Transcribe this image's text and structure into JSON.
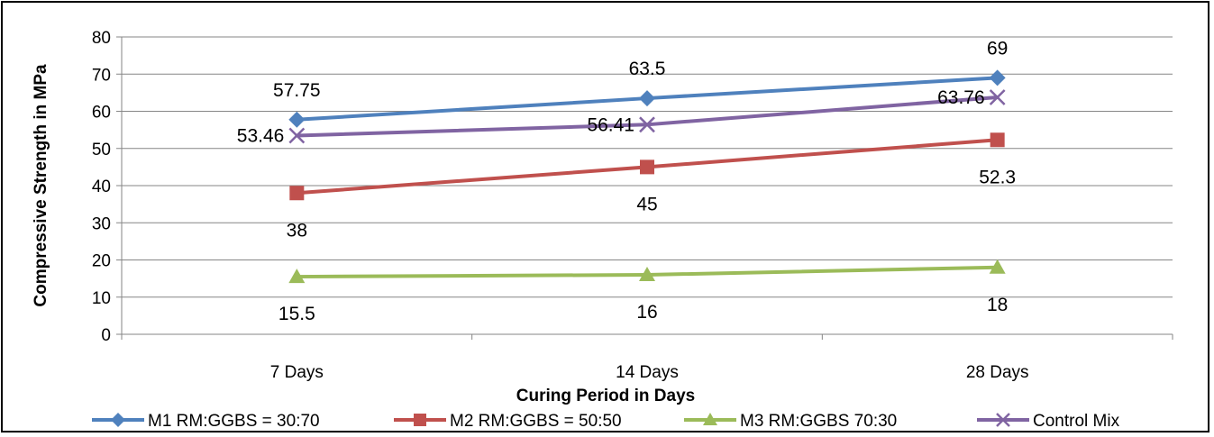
{
  "chart_data": {
    "type": "line",
    "categories": [
      "7 Days",
      "14 Days",
      "28 Days"
    ],
    "xlabel": "Curing Period in Days",
    "ylabel": "Compressive Strength in MPa",
    "ylim": [
      0,
      80
    ],
    "yticks": [
      0,
      10,
      20,
      30,
      40,
      50,
      60,
      70,
      80
    ],
    "grid": true,
    "legend_position": "bottom",
    "series": [
      {
        "name": "M1 RM:GGBS = 30:70",
        "color": "#4F81BD",
        "marker": "diamond",
        "values": [
          57.75,
          63.5,
          69
        ],
        "labels": [
          "57.75",
          "63.5",
          "69"
        ],
        "label_position": "above"
      },
      {
        "name": "M2 RM:GGBS = 50:50",
        "color": "#C0504D",
        "marker": "square",
        "values": [
          38,
          45,
          52.3
        ],
        "labels": [
          "38",
          "45",
          "52.3"
        ],
        "label_position": "below"
      },
      {
        "name": "M3 RM:GGBS 70:30",
        "color": "#9BBB59",
        "marker": "triangle",
        "values": [
          15.5,
          16,
          18
        ],
        "labels": [
          "15.5",
          "16",
          "18"
        ],
        "label_position": "below"
      },
      {
        "name": "Control Mix",
        "color": "#8064A2",
        "marker": "x",
        "values": [
          53.46,
          56.41,
          63.76
        ],
        "labels": [
          "53.46",
          "56.41",
          "63.76"
        ],
        "label_position": "left"
      }
    ]
  }
}
